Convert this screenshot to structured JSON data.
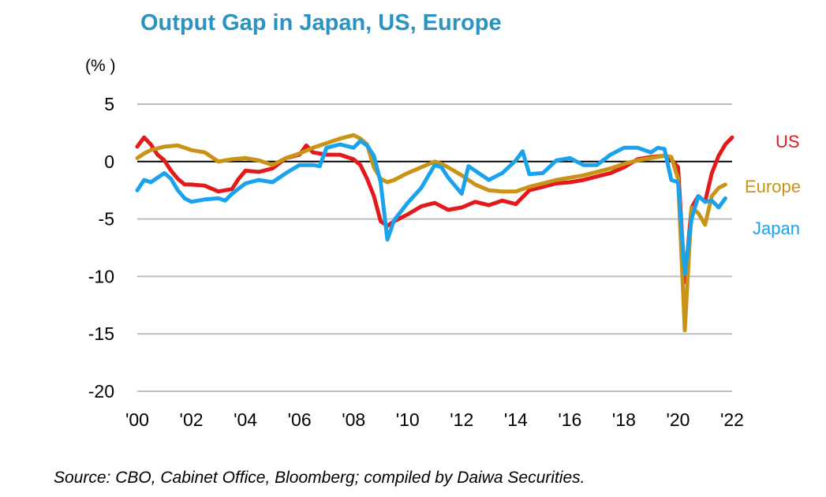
{
  "chart_data": {
    "type": "line",
    "title": "Output Gap in Japan, US, Europe",
    "ylabel": "(% )",
    "xlabel": "",
    "ylim": [
      -20,
      5
    ],
    "xlim": [
      2000,
      2022
    ],
    "yticks": [
      5,
      0,
      -5,
      -10,
      -15,
      -20
    ],
    "xticks": [
      {
        "value": 2000,
        "label": "'00"
      },
      {
        "value": 2002,
        "label": "'02"
      },
      {
        "value": 2004,
        "label": "'04"
      },
      {
        "value": 2006,
        "label": "'06"
      },
      {
        "value": 2008,
        "label": "'08"
      },
      {
        "value": 2010,
        "label": "'10"
      },
      {
        "value": 2012,
        "label": "'12"
      },
      {
        "value": 2014,
        "label": "'14"
      },
      {
        "value": 2016,
        "label": "'16"
      },
      {
        "value": 2018,
        "label": "'18"
      },
      {
        "value": 2020,
        "label": "'20"
      },
      {
        "value": 2022,
        "label": "'22"
      }
    ],
    "gridlines": true,
    "zero_line": true,
    "source": "Source: CBO, Cabinet Office, Bloomberg; compiled by Daiwa Securities.",
    "series": [
      {
        "name": "US",
        "color": "#e31a1c",
        "x": [
          2000,
          2000.25,
          2000.5,
          2000.75,
          2001,
          2001.25,
          2001.5,
          2001.75,
          2002,
          2002.5,
          2003,
          2003.5,
          2003.75,
          2004,
          2004.5,
          2005,
          2005.5,
          2006,
          2006.25,
          2006.5,
          2007,
          2007.5,
          2008,
          2008.25,
          2008.5,
          2008.75,
          2009,
          2009.25,
          2009.5,
          2010,
          2010.5,
          2011,
          2011.5,
          2012,
          2012.5,
          2013,
          2013.5,
          2014,
          2014.5,
          2015,
          2015.5,
          2016,
          2016.5,
          2017,
          2017.5,
          2018,
          2018.5,
          2019,
          2019.5,
          2019.75,
          2020,
          2020.25,
          2020.5,
          2020.75,
          2021,
          2021.25,
          2021.5,
          2021.75,
          2022
        ],
        "values": [
          1.3,
          2.1,
          1.5,
          0.6,
          0.1,
          -0.8,
          -1.5,
          -2.0,
          -2.0,
          -2.1,
          -2.6,
          -2.4,
          -1.5,
          -0.8,
          -0.9,
          -0.6,
          0.3,
          0.6,
          1.4,
          0.8,
          0.6,
          0.6,
          0.2,
          -0.3,
          -1.5,
          -3.0,
          -5.2,
          -5.6,
          -5.2,
          -4.6,
          -3.9,
          -3.6,
          -4.2,
          -4.0,
          -3.5,
          -3.8,
          -3.4,
          -3.7,
          -2.5,
          -2.2,
          -1.9,
          -1.8,
          -1.6,
          -1.3,
          -1.0,
          -0.5,
          0.2,
          0.4,
          0.5,
          0.2,
          -0.5,
          -10.5,
          -4.0,
          -3.0,
          -3.5,
          -1.0,
          0.5,
          1.5,
          2.1
        ]
      },
      {
        "name": "Europe",
        "color": "#c99316",
        "x": [
          2000,
          2000.25,
          2000.5,
          2001,
          2001.5,
          2002,
          2002.5,
          2003,
          2003.5,
          2004,
          2004.5,
          2005,
          2005.5,
          2006,
          2006.5,
          2007,
          2007.5,
          2008,
          2008.25,
          2008.5,
          2008.75,
          2009,
          2009.25,
          2009.5,
          2010,
          2010.5,
          2011,
          2011.25,
          2011.5,
          2012,
          2012.5,
          2013,
          2013.5,
          2014,
          2014.5,
          2015,
          2015.5,
          2016,
          2016.5,
          2017,
          2017.5,
          2018,
          2018.5,
          2019,
          2019.5,
          2019.75,
          2020,
          2020.25,
          2020.5,
          2020.75,
          2021,
          2021.25,
          2021.5,
          2021.75
        ],
        "values": [
          0.3,
          0.7,
          1.0,
          1.3,
          1.4,
          1.0,
          0.8,
          0.0,
          0.2,
          0.3,
          0.1,
          -0.3,
          0.3,
          0.7,
          1.2,
          1.6,
          2.0,
          2.3,
          2.0,
          1.5,
          -0.5,
          -1.5,
          -1.8,
          -1.6,
          -1.0,
          -0.5,
          0.0,
          -0.2,
          -0.5,
          -1.2,
          -2.0,
          -2.5,
          -2.6,
          -2.6,
          -2.2,
          -1.9,
          -1.6,
          -1.4,
          -1.2,
          -0.9,
          -0.6,
          -0.2,
          0.1,
          0.3,
          0.5,
          0.4,
          -1.5,
          -14.7,
          -4.0,
          -4.5,
          -5.5,
          -3.0,
          -2.3,
          -2.0
        ]
      },
      {
        "name": "Japan",
        "color": "#1aa3ec",
        "x": [
          2000,
          2000.25,
          2000.5,
          2001,
          2001.25,
          2001.5,
          2001.75,
          2002,
          2002.5,
          2003,
          2003.25,
          2003.5,
          2004,
          2004.5,
          2005,
          2005.5,
          2006,
          2006.5,
          2006.75,
          2007,
          2007.5,
          2008,
          2008.25,
          2008.5,
          2008.75,
          2009,
          2009.25,
          2009.5,
          2010,
          2010.5,
          2010.75,
          2011,
          2011.25,
          2011.5,
          2012,
          2012.25,
          2012.5,
          2013,
          2013.5,
          2014,
          2014.25,
          2014.5,
          2015,
          2015.5,
          2016,
          2016.5,
          2017,
          2017.5,
          2018,
          2018.5,
          2019,
          2019.25,
          2019.5,
          2019.75,
          2020,
          2020.25,
          2020.5,
          2020.75,
          2021,
          2021.25,
          2021.5,
          2021.75
        ],
        "values": [
          -2.5,
          -1.6,
          -1.8,
          -1.0,
          -1.5,
          -2.5,
          -3.2,
          -3.5,
          -3.3,
          -3.2,
          -3.4,
          -2.8,
          -1.9,
          -1.6,
          -1.8,
          -1.0,
          -0.3,
          -0.3,
          -0.4,
          1.2,
          1.5,
          1.2,
          1.8,
          1.4,
          0.5,
          -1.8,
          -6.8,
          -5.1,
          -3.6,
          -2.3,
          -1.3,
          -0.3,
          -0.5,
          -1.4,
          -2.8,
          -0.4,
          -0.8,
          -1.6,
          -1.0,
          0.1,
          0.9,
          -1.1,
          -1.0,
          0.1,
          0.3,
          -0.3,
          -0.3,
          0.6,
          1.2,
          1.2,
          0.8,
          1.2,
          1.1,
          -1.6,
          -1.8,
          -9.8,
          -5.0,
          -3.0,
          -3.5,
          -3.4,
          -4.0,
          -3.2
        ]
      }
    ]
  }
}
